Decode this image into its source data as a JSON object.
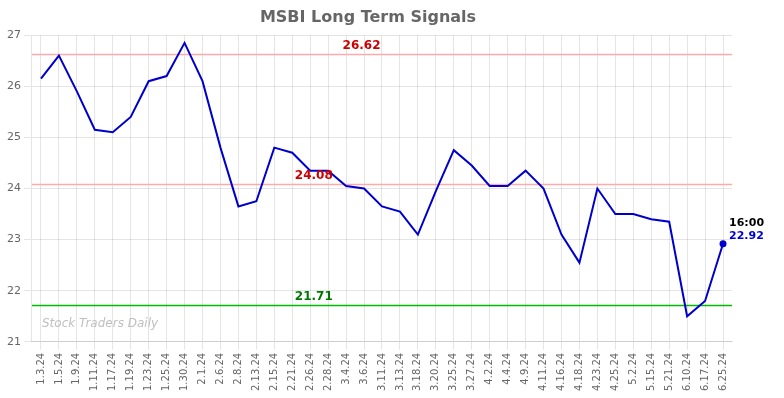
{
  "chart_data": {
    "type": "line",
    "title": "MSBI Long Term Signals",
    "categories": [
      "1.3.24",
      "1.5.24",
      "1.9.24",
      "1.11.24",
      "1.17.24",
      "1.19.24",
      "1.23.24",
      "1.25.24",
      "1.30.24",
      "2.1.24",
      "2.6.24",
      "2.8.24",
      "2.13.24",
      "2.15.24",
      "2.21.24",
      "2.26.24",
      "2.28.24",
      "3.4.24",
      "3.6.24",
      "3.11.24",
      "3.13.24",
      "3.18.24",
      "3.20.24",
      "3.25.24",
      "3.27.24",
      "4.2.24",
      "4.4.24",
      "4.9.24",
      "4.11.24",
      "4.16.24",
      "4.18.24",
      "4.23.24",
      "4.25.24",
      "5.2.24",
      "5.15.24",
      "5.21.24",
      "6.10.24",
      "6.17.24",
      "6.25.24"
    ],
    "values": [
      26.15,
      26.6,
      25.9,
      25.15,
      25.1,
      25.4,
      26.1,
      26.2,
      26.85,
      26.1,
      24.8,
      23.65,
      23.75,
      24.8,
      24.7,
      24.35,
      24.35,
      24.05,
      24.0,
      23.65,
      23.55,
      23.1,
      23.95,
      24.75,
      24.45,
      24.05,
      24.05,
      24.35,
      24.0,
      23.1,
      22.55,
      24.0,
      23.5,
      23.5,
      23.4,
      23.35,
      21.5,
      21.8,
      22.92
    ],
    "color": "#0000cc",
    "ylim": [
      21.0,
      27.0
    ],
    "yticks": [
      21,
      22,
      23,
      24,
      25,
      26,
      27
    ],
    "grid": true,
    "annotations": [
      {
        "type": "hline",
        "y": 26.62,
        "text": "26.62",
        "color": "#ffaaaa",
        "text_color": "#cc0000"
      },
      {
        "type": "hline",
        "y": 24.08,
        "text": "24.08",
        "color": "#ffaaaa",
        "text_color": "#cc0000"
      },
      {
        "type": "hline",
        "y": 21.71,
        "text": "21.71",
        "color": "#00bb00",
        "text_color": "#007700"
      },
      {
        "type": "point",
        "x": "6.25.24",
        "y": 22.92,
        "text": [
          "16:00",
          "22.92"
        ],
        "color": "#0000cc"
      },
      {
        "type": "text",
        "text": "Stock Traders Daily",
        "color": "#c0c0c0"
      }
    ]
  }
}
